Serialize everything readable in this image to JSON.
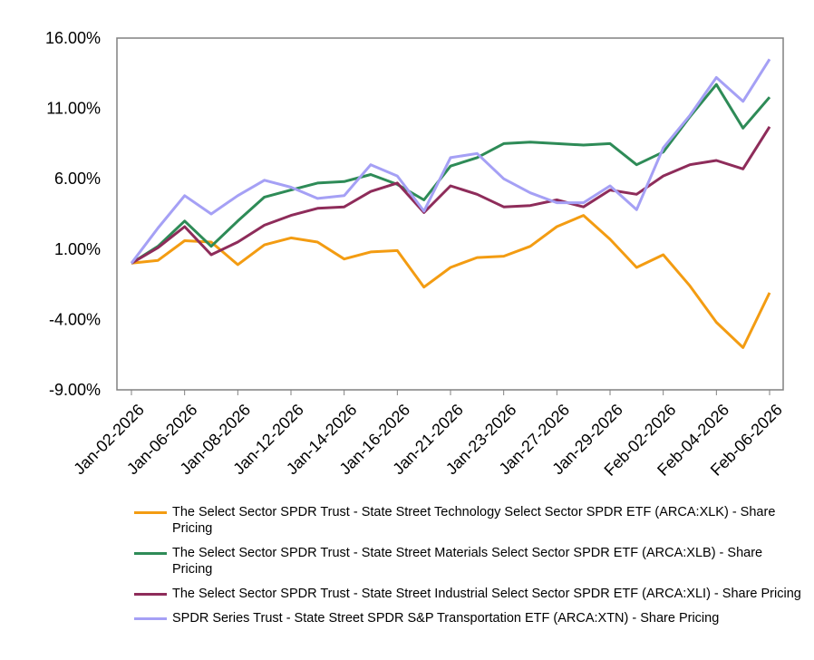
{
  "chart_data": {
    "type": "line",
    "title": "",
    "xlabel": "",
    "ylabel": "",
    "ylim": [
      -9,
      16
    ],
    "yticks": [
      -9,
      -4,
      1,
      6,
      11,
      16
    ],
    "ytick_labels": [
      "-9.00%",
      "-4.00%",
      "1.00%",
      "6.00%",
      "11.00%",
      "16.00%"
    ],
    "x": [
      "Jan-02-2026",
      "Jan-05-2026",
      "Jan-06-2026",
      "Jan-07-2026",
      "Jan-08-2026",
      "Jan-09-2026",
      "Jan-12-2026",
      "Jan-13-2026",
      "Jan-14-2026",
      "Jan-15-2026",
      "Jan-16-2026",
      "Jan-20-2026",
      "Jan-21-2026",
      "Jan-22-2026",
      "Jan-23-2026",
      "Jan-26-2026",
      "Jan-27-2026",
      "Jan-28-2026",
      "Jan-29-2026",
      "Jan-30-2026",
      "Feb-02-2026",
      "Feb-03-2026",
      "Feb-04-2026",
      "Feb-05-2026",
      "Feb-06-2026"
    ],
    "xtick_labels": [
      "Jan-02-2026",
      "Jan-06-2026",
      "Jan-08-2026",
      "Jan-12-2026",
      "Jan-14-2026",
      "Jan-16-2026",
      "Jan-21-2026",
      "Jan-23-2026",
      "Jan-27-2026",
      "Jan-29-2026",
      "Feb-02-2026",
      "Feb-04-2026",
      "Feb-06-2026"
    ],
    "series": [
      {
        "name": "The Select Sector SPDR Trust - State Street Technology Select Sector SPDR ETF (ARCA:XLK) - Share Pricing",
        "color": "#F39C12",
        "values": [
          0.0,
          0.2,
          1.6,
          1.5,
          -0.1,
          1.3,
          1.8,
          1.5,
          0.3,
          0.8,
          0.9,
          -1.7,
          -0.3,
          0.4,
          0.5,
          1.2,
          2.6,
          3.4,
          1.7,
          -0.3,
          0.6,
          -1.6,
          -4.2,
          -6.0,
          -2.1
        ]
      },
      {
        "name": "The Select Sector SPDR Trust - State Street Materials Select Sector SPDR ETF (ARCA:XLB) - Share Pricing",
        "color": "#2E8B57",
        "values": [
          0.0,
          1.2,
          3.0,
          1.2,
          3.0,
          4.7,
          5.2,
          5.7,
          5.8,
          6.3,
          5.6,
          4.5,
          6.9,
          7.5,
          8.5,
          8.6,
          8.5,
          8.4,
          8.5,
          7.0,
          7.9,
          10.4,
          12.7,
          9.6,
          11.8
        ]
      },
      {
        "name": "The Select Sector SPDR Trust - State Street Industrial Select Sector SPDR ETF (ARCA:XLI) - Share Pricing",
        "color": "#8E2C5A",
        "values": [
          0.0,
          1.1,
          2.6,
          0.6,
          1.5,
          2.7,
          3.4,
          3.9,
          4.0,
          5.1,
          5.7,
          3.6,
          5.5,
          4.9,
          4.0,
          4.1,
          4.5,
          4.0,
          5.2,
          4.9,
          6.2,
          7.0,
          7.3,
          6.7,
          9.7
        ]
      },
      {
        "name": "SPDR Series Trust - State Street SPDR S&P Transportation ETF (ARCA:XTN) - Share Pricing",
        "color": "#A5A0F5",
        "values": [
          0.0,
          2.5,
          4.8,
          3.5,
          4.8,
          5.9,
          5.4,
          4.6,
          4.8,
          7.0,
          6.2,
          3.7,
          7.5,
          7.8,
          6.0,
          5.0,
          4.3,
          4.3,
          5.5,
          3.8,
          8.2,
          10.5,
          13.2,
          11.5,
          14.5
        ]
      }
    ],
    "legend_position": "bottom"
  }
}
